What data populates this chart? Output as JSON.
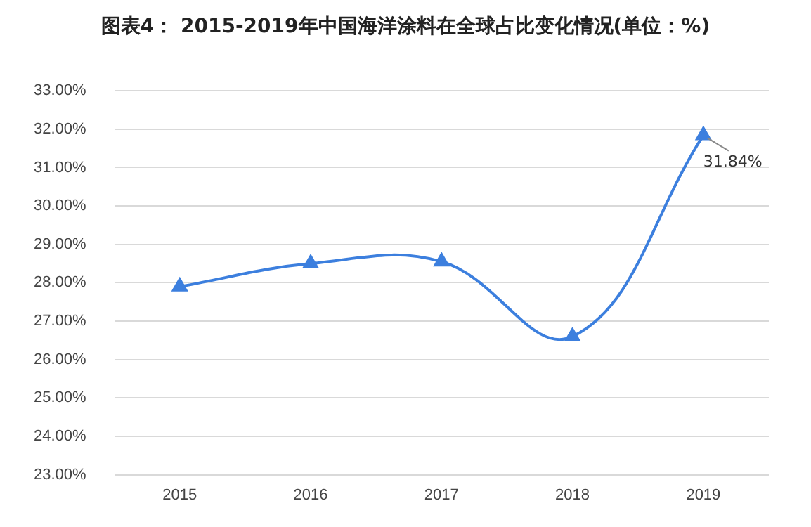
{
  "chart_data": {
    "type": "line",
    "title": "图表4： 2015-2019年中国海洋涂料在全球占比变化情况(单位：%)",
    "categories": [
      "2015",
      "2016",
      "2017",
      "2018",
      "2019"
    ],
    "series": [
      {
        "color": "#3c7fde",
        "values": [
          27.9,
          28.5,
          28.55,
          26.6,
          31.84
        ]
      }
    ],
    "ylim": [
      23,
      33
    ],
    "yticks": [
      {
        "value": 23,
        "label": "23.00%"
      },
      {
        "value": 24,
        "label": "24.00%"
      },
      {
        "value": 25,
        "label": "25.00%"
      },
      {
        "value": 26,
        "label": "26.00%"
      },
      {
        "value": 27,
        "label": "27.00%"
      },
      {
        "value": 28,
        "label": "28.00%"
      },
      {
        "value": 29,
        "label": "29.00%"
      },
      {
        "value": 30,
        "label": "30.00%"
      },
      {
        "value": 31,
        "label": "31.00%"
      },
      {
        "value": 32,
        "label": "32.00%"
      },
      {
        "value": 33,
        "label": "33.00%"
      }
    ],
    "grid": "y",
    "legend": false,
    "marker": "triangle",
    "line_style": "solid",
    "annotations": [
      {
        "text": "31.84%",
        "x": "2019",
        "y": 31.84
      }
    ]
  }
}
